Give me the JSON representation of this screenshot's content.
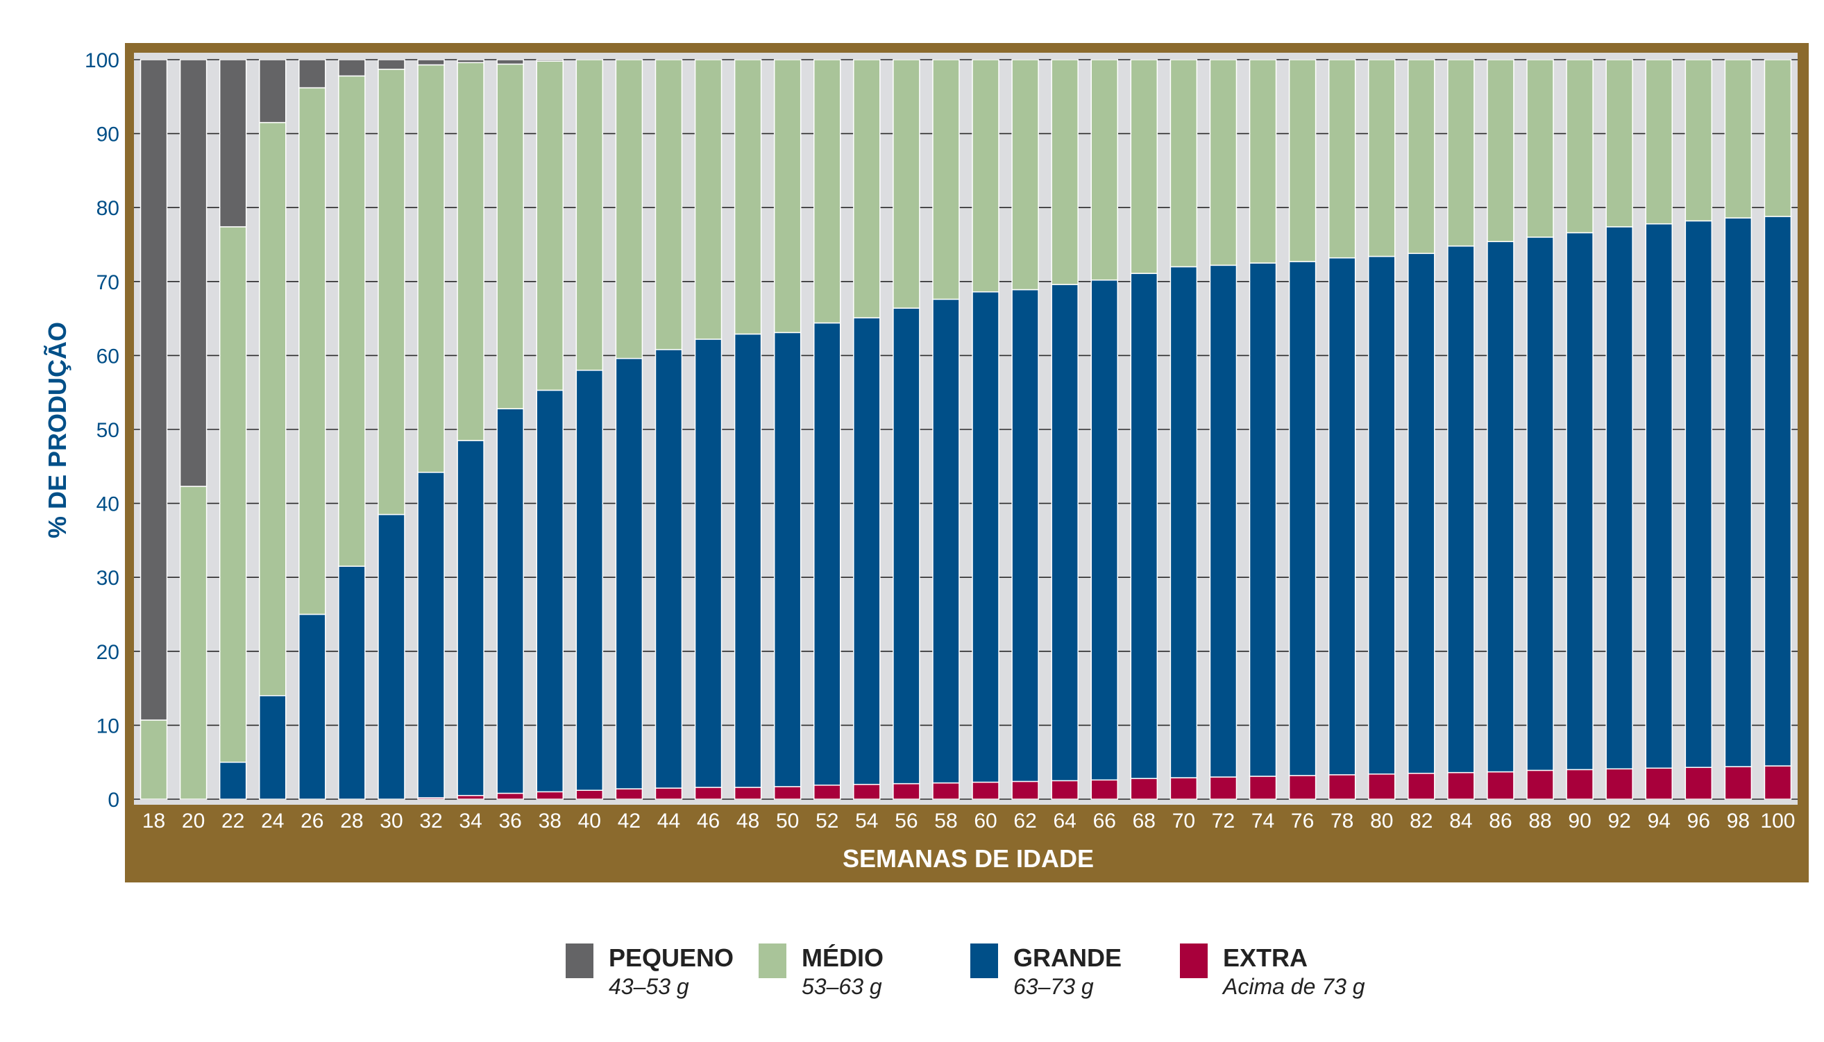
{
  "chart_data": {
    "type": "bar",
    "stacked": true,
    "ylabel": "% DE PRODUÇÃO",
    "xlabel": "SEMANAS DE IDADE",
    "ylim": [
      0,
      100
    ],
    "yticks": [
      0,
      10,
      20,
      30,
      40,
      50,
      60,
      70,
      80,
      90,
      100
    ],
    "grid": true,
    "categories": [
      "18",
      "20",
      "22",
      "24",
      "26",
      "28",
      "30",
      "32",
      "34",
      "36",
      "38",
      "40",
      "42",
      "44",
      "46",
      "48",
      "50",
      "52",
      "54",
      "56",
      "58",
      "60",
      "62",
      "64",
      "66",
      "68",
      "70",
      "72",
      "74",
      "76",
      "78",
      "80",
      "82",
      "84",
      "86",
      "88",
      "90",
      "92",
      "94",
      "96",
      "98",
      "100"
    ],
    "series": [
      {
        "name": "EXTRA",
        "range": "Acima de 73 g",
        "color": "#a8003b",
        "values": [
          0,
          0,
          0,
          0,
          0,
          0,
          0,
          0.2,
          0.5,
          0.8,
          1,
          1.2,
          1.4,
          1.5,
          1.6,
          1.6,
          1.7,
          1.9,
          2.0,
          2.1,
          2.2,
          2.3,
          2.4,
          2.5,
          2.6,
          2.8,
          2.9,
          3.0,
          3.1,
          3.2,
          3.3,
          3.4,
          3.5,
          3.6,
          3.7,
          3.9,
          4.0,
          4.1,
          4.2,
          4.3,
          4.4,
          4.5
        ]
      },
      {
        "name": "GRANDE",
        "range": "63–73 g",
        "color": "#004f88",
        "values": [
          0,
          0,
          5,
          14,
          25,
          31.5,
          38.5,
          44,
          48,
          52,
          54.3,
          56.8,
          58.2,
          59.3,
          60.6,
          61.3,
          61.4,
          62.5,
          63.1,
          64.3,
          65.4,
          66.3,
          66.5,
          67.1,
          67.6,
          68.3,
          69.1,
          69.2,
          69.4,
          69.5,
          69.9,
          70.0,
          70.3,
          71.2,
          71.7,
          72.1,
          72.6,
          73.3,
          73.6,
          73.9,
          74.2,
          74.3
        ]
      },
      {
        "name": "MÉDIO",
        "range": "53–63 g",
        "color": "#a9c499",
        "values": [
          10.7,
          42.3,
          72.4,
          77.5,
          71.2,
          66.3,
          60.2,
          55.1,
          51.1,
          46.6,
          44.5,
          42,
          40.4,
          39.2,
          37.8,
          37.1,
          36.9,
          35.6,
          34.9,
          33.6,
          32.4,
          31.4,
          31.1,
          30.4,
          29.8,
          28.9,
          28.0,
          27.8,
          27.5,
          27.3,
          26.8,
          26.6,
          26.2,
          25.2,
          24.6,
          24.0,
          23.4,
          22.6,
          22.2,
          21.8,
          21.4,
          21.2
        ]
      },
      {
        "name": "PEQUENO",
        "range": "43–53 g",
        "color": "#646466",
        "values": [
          89.3,
          57.7,
          22.6,
          8.5,
          3.8,
          2.2,
          1.3,
          0.7,
          0.4,
          0.6,
          0.2,
          0,
          0,
          0,
          0,
          0,
          0,
          0,
          0,
          0,
          0,
          0,
          0,
          0,
          0,
          0,
          0,
          0,
          0,
          0,
          0,
          0,
          0,
          0,
          0,
          0,
          0,
          0,
          0,
          0,
          0,
          0
        ]
      }
    ]
  },
  "legend": [
    {
      "name": "PEQUENO",
      "range": "43–53 g",
      "color": "#646466"
    },
    {
      "name": "MÉDIO",
      "range": "53–63 g",
      "color": "#a9c499"
    },
    {
      "name": "GRANDE",
      "range": "63–73 g",
      "color": "#004f88"
    },
    {
      "name": "EXTRA",
      "range": "Acima de 73 g",
      "color": "#a8003b"
    }
  ],
  "colors": {
    "frame": "#8b6a2d",
    "plot_bg": "#dcdde0",
    "axis_text": "#004f88",
    "xlabel_text": "#ffffff"
  }
}
